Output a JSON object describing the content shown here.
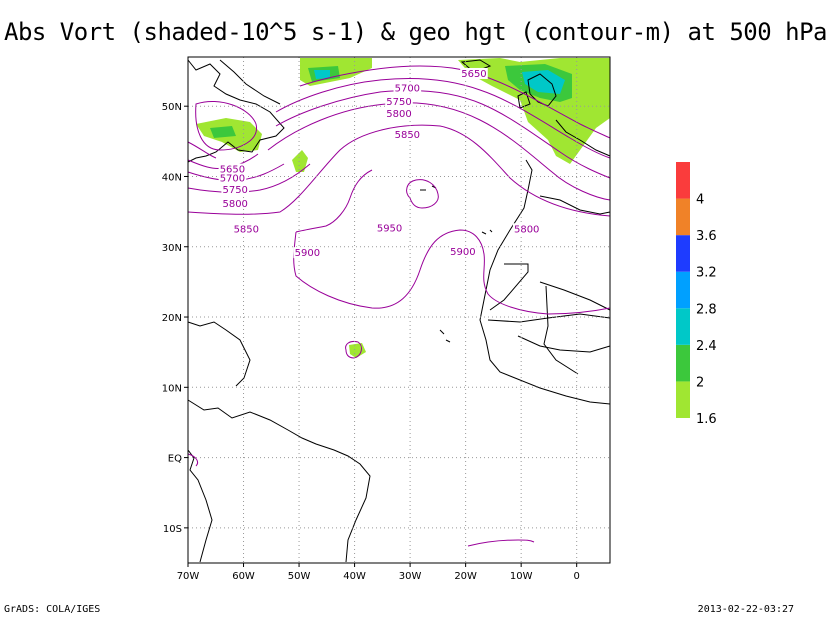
{
  "title": "Abs Vort (shaded-10^5 s-1) & geo hgt (contour-m) at 500 hPa",
  "footer": {
    "left": "GrADS: COLA/IGES",
    "right": "2013-02-22-03:27"
  },
  "chart_data": {
    "type": "heatmap",
    "title": "Abs Vort (shaded-10^5 s-1) & geo hgt (contour-m) at 500 hPa",
    "x_ticks": [
      "70W",
      "60W",
      "50W",
      "40W",
      "30W",
      "20W",
      "10W",
      "0"
    ],
    "y_ticks": [
      "50N",
      "40N",
      "30N",
      "20N",
      "10N",
      "EQ",
      "10S"
    ],
    "xlim": [
      -70,
      6
    ],
    "ylim": [
      -15,
      57
    ],
    "grid": true,
    "contour_labels": [
      {
        "value": "5650",
        "lon": -18.5,
        "lat": 54.3
      },
      {
        "value": "5700",
        "lon": -30.5,
        "lat": 52.2
      },
      {
        "value": "5750",
        "lon": -32,
        "lat": 50.3
      },
      {
        "value": "5800",
        "lon": -32,
        "lat": 48.6
      },
      {
        "value": "5850",
        "lon": -30.5,
        "lat": 45.6
      },
      {
        "value": "5650",
        "lon": -62,
        "lat": 40.7
      },
      {
        "value": "5700",
        "lon": -62,
        "lat": 39.4
      },
      {
        "value": "5750",
        "lon": -61.5,
        "lat": 37.8
      },
      {
        "value": "5800",
        "lon": -61.5,
        "lat": 35.8
      },
      {
        "value": "5850",
        "lon": -59.5,
        "lat": 32.2
      },
      {
        "value": "5900",
        "lon": -48.5,
        "lat": 28.8
      },
      {
        "value": "5950",
        "lon": -33.7,
        "lat": 32.3
      },
      {
        "value": "5900",
        "lon": -20.5,
        "lat": 29.0
      },
      {
        "value": "5800",
        "lon": -9.0,
        "lat": 32.2
      }
    ],
    "colorbar": {
      "levels": [
        "1.6",
        "2",
        "2.4",
        "2.8",
        "3.2",
        "3.6",
        "4"
      ],
      "colors": [
        "#a0e632",
        "#3cc83c",
        "#00c8c8",
        "#00a0ff",
        "#1e3cff",
        "#f08228",
        "#fa3c3c"
      ]
    }
  }
}
